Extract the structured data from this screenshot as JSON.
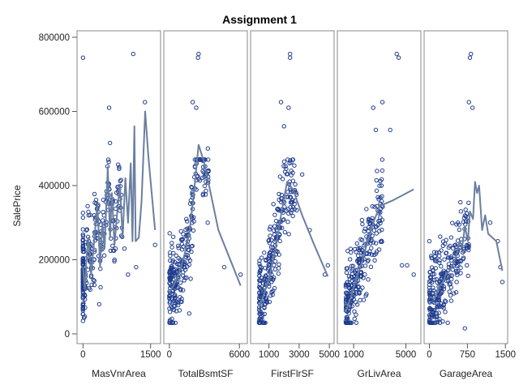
{
  "chart_data": {
    "type": "scatter",
    "title": "Assignment 1",
    "ylabel": "SalePrice",
    "ylim": [
      0,
      800000
    ],
    "y_ticks": [
      0,
      200000,
      400000,
      600000,
      800000
    ],
    "y_tick_labels": [
      "0",
      "200000",
      "400000",
      "600000",
      "800000"
    ],
    "grid": false,
    "marker_color": "#1f3c8f",
    "line_color": "#6a7fa0",
    "panels": [
      {
        "xlabel": "MasVnrArea",
        "xlim": [
          -60,
          1650
        ],
        "x_ticks": [
          0,
          1500
        ],
        "x_tick_labels": [
          "0",
          "1500"
        ],
        "key_points": [
          [
            0,
            745000
          ],
          [
            1115,
            755000
          ],
          [
            1375,
            625000
          ],
          [
            600,
            515000
          ],
          [
            580,
            610000
          ],
          [
            1600,
            240000
          ],
          [
            1180,
            180000
          ],
          [
            920,
            230000
          ],
          [
            360,
            80000
          ],
          [
            0,
            35000
          ],
          [
            700,
            200000
          ],
          [
            1000,
            160000
          ]
        ],
        "trend": [
          [
            0,
            180000
          ],
          [
            40,
            120000
          ],
          [
            80,
            210000
          ],
          [
            120,
            260000
          ],
          [
            180,
            160000
          ],
          [
            240,
            240000
          ],
          [
            320,
            350000
          ],
          [
            380,
            180000
          ],
          [
            430,
            300000
          ],
          [
            480,
            230000
          ],
          [
            550,
            450000
          ],
          [
            600,
            260000
          ],
          [
            640,
            380000
          ],
          [
            700,
            240000
          ],
          [
            760,
            330000
          ],
          [
            820,
            400000
          ],
          [
            880,
            260000
          ],
          [
            940,
            420000
          ],
          [
            1000,
            300000
          ],
          [
            1060,
            460000
          ],
          [
            1100,
            250000
          ],
          [
            1140,
            560000
          ],
          [
            1170,
            250000
          ],
          [
            1240,
            260000
          ],
          [
            1300,
            360000
          ],
          [
            1380,
            600000
          ],
          [
            1450,
            480000
          ],
          [
            1600,
            280000
          ]
        ]
      },
      {
        "xlabel": "TotalBsmtSF",
        "xlim": [
          -200,
          6400
        ],
        "x_ticks": [
          0,
          6000
        ],
        "x_tick_labels": [
          "0",
          "6000"
        ],
        "key_points": [
          [
            2500,
            755000
          ],
          [
            2450,
            745000
          ],
          [
            2000,
            625000
          ],
          [
            2300,
            610000
          ],
          [
            1700,
            55000
          ],
          [
            3200,
            430000
          ],
          [
            4700,
            180000
          ],
          [
            6100,
            160000
          ],
          [
            300,
            30000
          ],
          [
            3300,
            500000
          ]
        ],
        "trend": [
          [
            0,
            110000
          ],
          [
            500,
            140000
          ],
          [
            900,
            170000
          ],
          [
            1300,
            215000
          ],
          [
            1700,
            270000
          ],
          [
            2100,
            380000
          ],
          [
            2500,
            510000
          ],
          [
            3000,
            460000
          ],
          [
            4200,
            280000
          ],
          [
            6100,
            130000
          ]
        ]
      },
      {
        "xlabel": "FirstFlrSF",
        "xlim": [
          0,
          5100
        ],
        "x_ticks": [
          1000,
          3000,
          5000
        ],
        "x_tick_labels": [
          "1000",
          "3000",
          "5000"
        ],
        "key_points": [
          [
            2400,
            755000
          ],
          [
            2400,
            745000
          ],
          [
            1800,
            625000
          ],
          [
            2300,
            610000
          ],
          [
            3200,
            430000
          ],
          [
            3700,
            280000
          ],
          [
            4700,
            160000
          ],
          [
            4900,
            185000
          ],
          [
            350,
            35000
          ],
          [
            2000,
            560000
          ]
        ],
        "trend": [
          [
            350,
            70000
          ],
          [
            700,
            110000
          ],
          [
            1000,
            150000
          ],
          [
            1400,
            220000
          ],
          [
            1800,
            320000
          ],
          [
            2200,
            410000
          ],
          [
            2600,
            390000
          ],
          [
            3200,
            320000
          ],
          [
            4000,
            240000
          ],
          [
            4900,
            155000
          ]
        ]
      },
      {
        "xlabel": "GrLivArea",
        "xlim": [
          0,
          5900
        ],
        "x_ticks": [
          1000,
          5000
        ],
        "x_tick_labels": [
          "1000",
          "5000"
        ],
        "key_points": [
          [
            4300,
            755000
          ],
          [
            4450,
            745000
          ],
          [
            3200,
            625000
          ],
          [
            2500,
            610000
          ],
          [
            4700,
            185000
          ],
          [
            5100,
            185000
          ],
          [
            5600,
            160000
          ],
          [
            400,
            35000
          ],
          [
            2700,
            550000
          ],
          [
            3800,
            550000
          ]
        ],
        "trend": [
          [
            400,
            60000
          ],
          [
            800,
            100000
          ],
          [
            1200,
            150000
          ],
          [
            1600,
            190000
          ],
          [
            2000,
            240000
          ],
          [
            2500,
            300000
          ],
          [
            3000,
            345000
          ],
          [
            4000,
            360000
          ],
          [
            5600,
            390000
          ]
        ]
      },
      {
        "xlabel": "GarageArea",
        "xlim": [
          -40,
          1480
        ],
        "x_ticks": [
          0,
          750,
          1500
        ],
        "x_tick_labels": [
          "0",
          "750",
          "1500"
        ],
        "key_points": [
          [
            820,
            755000
          ],
          [
            800,
            745000
          ],
          [
            780,
            625000
          ],
          [
            850,
            610000
          ],
          [
            1350,
            250000
          ],
          [
            1400,
            180000
          ],
          [
            1440,
            140000
          ],
          [
            0,
            250000
          ],
          [
            0,
            35000
          ],
          [
            700,
            15000
          ],
          [
            1200,
            300000
          ]
        ],
        "trend": [
          [
            0,
            100000
          ],
          [
            100,
            95000
          ],
          [
            200,
            130000
          ],
          [
            280,
            140000
          ],
          [
            320,
            160000
          ],
          [
            400,
            170000
          ],
          [
            480,
            190000
          ],
          [
            550,
            220000
          ],
          [
            600,
            250000
          ],
          [
            650,
            235000
          ],
          [
            700,
            290000
          ],
          [
            760,
            250000
          ],
          [
            800,
            330000
          ],
          [
            860,
            310000
          ],
          [
            900,
            410000
          ],
          [
            940,
            380000
          ],
          [
            980,
            400000
          ],
          [
            1040,
            280000
          ],
          [
            1100,
            320000
          ],
          [
            1160,
            270000
          ],
          [
            1240,
            260000
          ],
          [
            1320,
            250000
          ],
          [
            1440,
            170000
          ]
        ]
      }
    ]
  }
}
